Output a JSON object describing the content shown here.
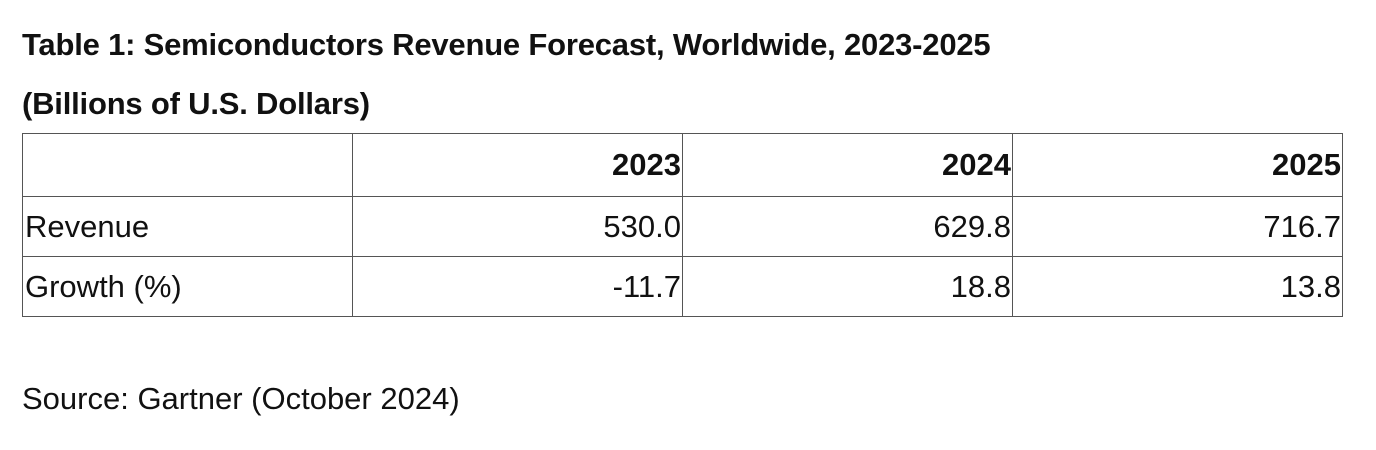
{
  "title": {
    "line1": "Table 1: Semiconductors Revenue Forecast, Worldwide, 2023-2025",
    "line2": "(Billions of U.S. Dollars)"
  },
  "table": {
    "header": [
      "",
      "2023",
      "2024",
      "2025"
    ],
    "rows": [
      {
        "label": "Revenue",
        "values": [
          "530.0",
          "629.8",
          "716.7"
        ]
      },
      {
        "label": "Growth (%)",
        "values": [
          "-11.7",
          "18.8",
          "13.8"
        ]
      }
    ]
  },
  "source": "Source: Gartner (October 2024)"
}
